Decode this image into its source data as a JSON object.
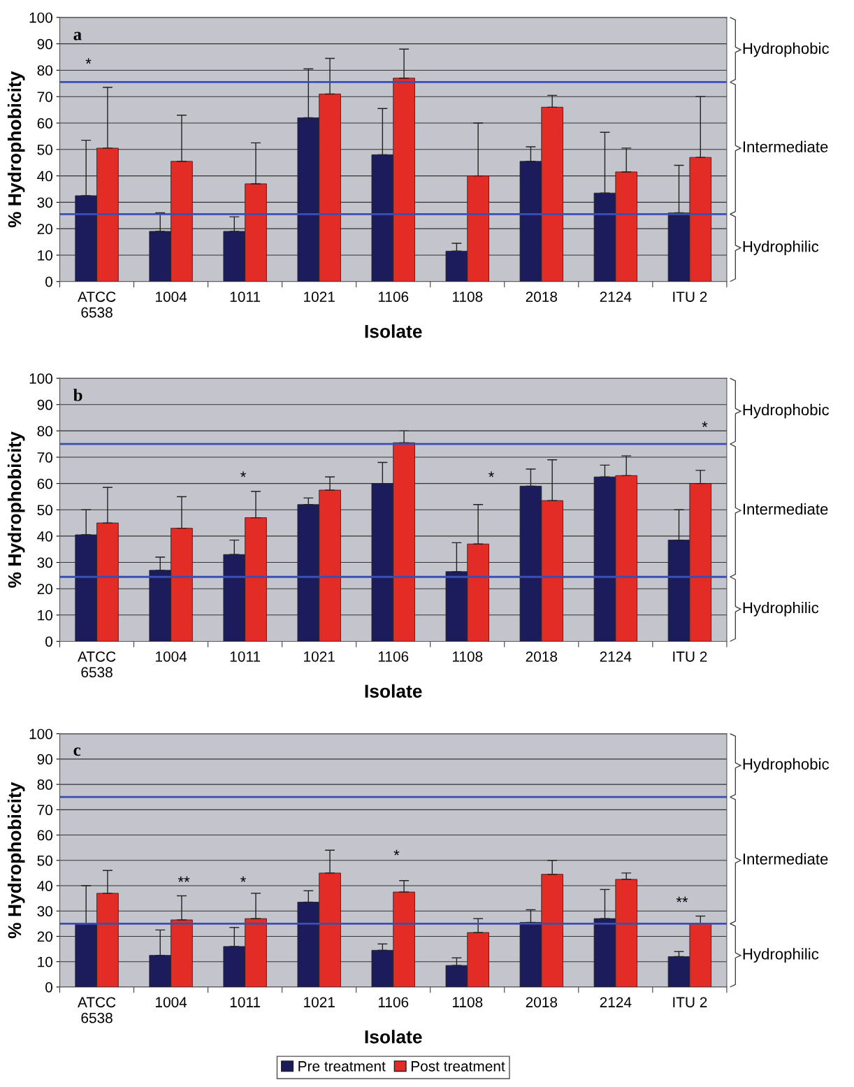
{
  "chart_data": [
    {
      "type": "bar",
      "title": "a",
      "xlabel": "Isolate",
      "ylabel": "% Hydrophobicity",
      "categories": [
        "ATCC\n6538",
        "1004",
        "1011",
        "1021",
        "1106",
        "1108",
        "2018",
        "2124",
        "ITU 2"
      ],
      "series": [
        {
          "name": "Pre treatment",
          "color": "#1c1c5c",
          "values": [
            32.5,
            19,
            19,
            62,
            48,
            11.5,
            45.5,
            33.5,
            26
          ],
          "errors": [
            [
              32.5,
              53.5
            ],
            [
              19,
              26
            ],
            [
              19,
              24.5
            ],
            [
              62,
              80.5
            ],
            [
              48,
              65.5
            ],
            [
              11.5,
              14.5
            ],
            [
              45.5,
              51
            ],
            [
              33.5,
              56.5
            ],
            [
              26,
              44
            ]
          ]
        },
        {
          "name": "Post treatment",
          "color": "#e42c26",
          "values": [
            50.5,
            45.5,
            37,
            71,
            77,
            40,
            66,
            41.5,
            47
          ],
          "errors": [
            [
              50.5,
              73.5
            ],
            [
              45.5,
              63
            ],
            [
              37,
              52.5
            ],
            [
              71,
              84.5
            ],
            [
              77,
              88
            ],
            [
              40,
              60
            ],
            [
              66,
              70.5
            ],
            [
              41.5,
              50.5
            ],
            [
              47,
              70
            ]
          ]
        }
      ],
      "ylim": [
        0,
        100
      ],
      "yticks": [
        0,
        10,
        20,
        30,
        40,
        50,
        60,
        70,
        80,
        90,
        100
      ],
      "grid": "y",
      "ref_lines": [
        {
          "axis": "y",
          "value": 75.5,
          "color": "#3a4fb0"
        },
        {
          "axis": "y",
          "value": 25.5,
          "color": "#3a4fb0"
        }
      ],
      "legend": "bottom",
      "annotations": [
        "Hydrophobic",
        "Intermediate",
        "Hydrophilic",
        "*"
      ]
    },
    {
      "type": "bar",
      "title": "b",
      "xlabel": "Isolate",
      "ylabel": "% Hydrophobicity",
      "categories": [
        "ATCC\n6538",
        "1004",
        "1011",
        "1021",
        "1106",
        "1108",
        "2018",
        "2124",
        "ITU 2"
      ],
      "series": [
        {
          "color": "#1c1c5c",
          "values": [
            40.5,
            27,
            33,
            52,
            60,
            26.5,
            59,
            62.5,
            38.5
          ],
          "errors": [
            [
              40.5,
              50
            ],
            [
              27,
              32
            ],
            [
              33,
              38.5
            ],
            [
              52,
              54.5
            ],
            [
              60,
              68
            ],
            [
              26.5,
              37.5
            ],
            [
              59,
              65.5
            ],
            [
              62.5,
              67
            ],
            [
              38.5,
              50
            ]
          ]
        },
        {
          "color": "#e42c26",
          "values": [
            45,
            43,
            47,
            57.5,
            75.5,
            37,
            53.5,
            63,
            60
          ],
          "errors": [
            [
              45,
              58.5
            ],
            [
              43,
              55
            ],
            [
              47,
              57
            ],
            [
              57.5,
              62.5
            ],
            [
              75.5,
              80
            ],
            [
              37,
              52
            ],
            [
              53.5,
              69
            ],
            [
              63,
              70.5
            ],
            [
              60,
              65
            ]
          ]
        }
      ],
      "ylim": [
        0,
        100
      ],
      "yticks": [
        0,
        10,
        20,
        30,
        40,
        50,
        60,
        70,
        80,
        90,
        100
      ],
      "grid": "y",
      "ref_lines": [
        {
          "axis": "y",
          "value": 75,
          "color": "#3a4fb0"
        },
        {
          "axis": "y",
          "value": 24.5,
          "color": "#3a4fb0"
        }
      ],
      "annotations": [
        "Hydrophobic",
        "Intermediate",
        "Hydrophilic",
        "*",
        "*",
        "*"
      ]
    },
    {
      "type": "bar",
      "title": "c",
      "xlabel": "Isolate",
      "ylabel": "% Hydrophobicity",
      "categories": [
        "ATCC\n6538",
        "1004",
        "1011",
        "1021",
        "1106",
        "1108",
        "2018",
        "2124",
        "ITU 2"
      ],
      "series": [
        {
          "color": "#1c1c5c",
          "values": [
            25,
            12.5,
            16,
            33.5,
            14.5,
            8.5,
            25.5,
            27,
            12
          ],
          "errors": [
            [
              25,
              40
            ],
            [
              12.5,
              22.5
            ],
            [
              16,
              23.5
            ],
            [
              33.5,
              38
            ],
            [
              14.5,
              17
            ],
            [
              8.5,
              11.5
            ],
            [
              25.5,
              30.5
            ],
            [
              27,
              38.5
            ],
            [
              12,
              14
            ]
          ]
        },
        {
          "color": "#e42c26",
          "values": [
            37,
            26.5,
            27,
            45,
            37.5,
            21.5,
            44.5,
            42.5,
            25
          ],
          "errors": [
            [
              37,
              46
            ],
            [
              26.5,
              36
            ],
            [
              27,
              37
            ],
            [
              45,
              54
            ],
            [
              37.5,
              42
            ],
            [
              21.5,
              27
            ],
            [
              44.5,
              50
            ],
            [
              42.5,
              45
            ],
            [
              25,
              28
            ]
          ]
        }
      ],
      "ylim": [
        0,
        100
      ],
      "yticks": [
        0,
        10,
        20,
        30,
        40,
        50,
        60,
        70,
        80,
        90,
        100
      ],
      "grid": "y",
      "ref_lines": [
        {
          "axis": "y",
          "value": 75,
          "color": "#3a4fb0"
        },
        {
          "axis": "y",
          "value": 25,
          "color": "#3a4fb0"
        }
      ],
      "annotations": [
        "Hydrophobic",
        "Intermediate",
        "Hydrophilic",
        "**",
        "*",
        "*",
        "**"
      ]
    }
  ]
}
